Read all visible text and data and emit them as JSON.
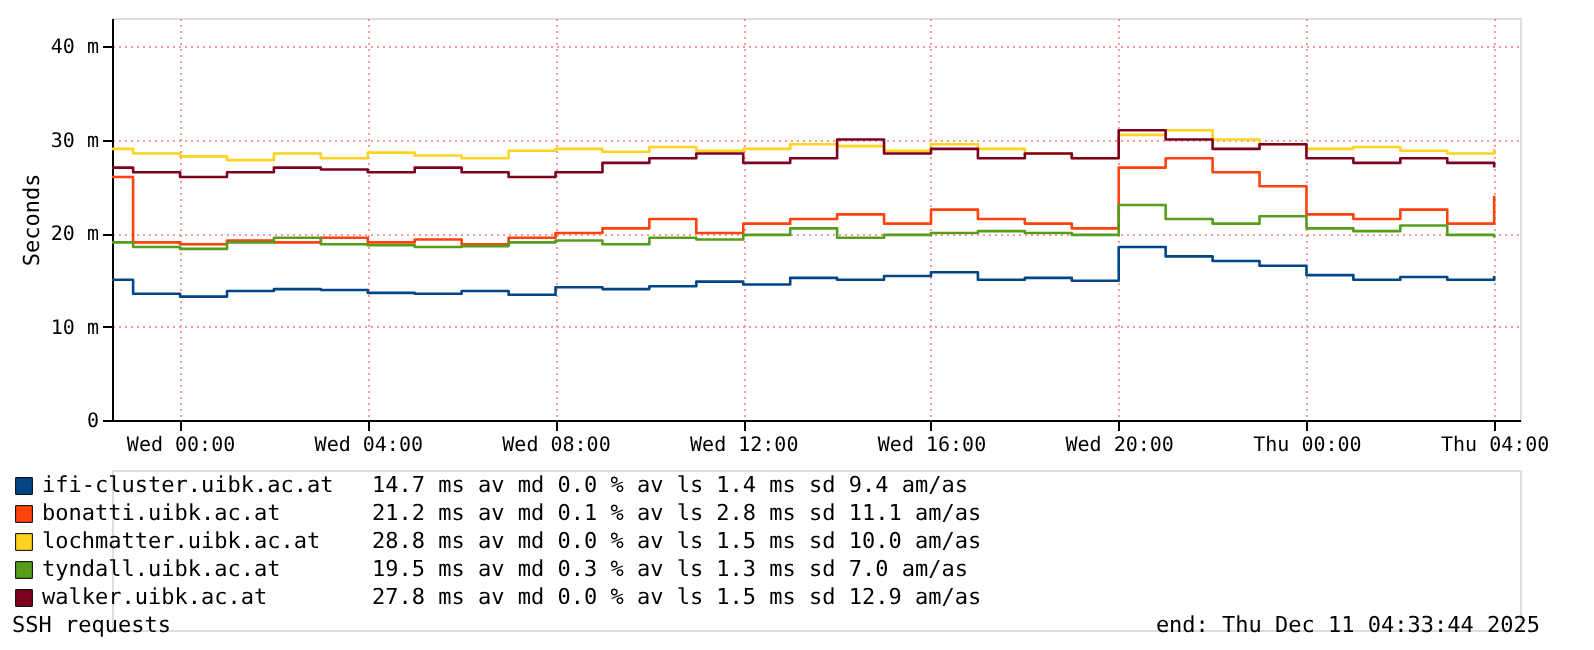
{
  "chart_data": {
    "type": "step",
    "ylabel": "Seconds",
    "x": [
      "2025-12-09T22:33",
      "2025-12-09T23:00",
      "2025-12-10T00:00",
      "2025-12-10T01:00",
      "2025-12-10T02:00",
      "2025-12-10T03:00",
      "2025-12-10T04:00",
      "2025-12-10T05:00",
      "2025-12-10T06:00",
      "2025-12-10T07:00",
      "2025-12-10T08:00",
      "2025-12-10T09:00",
      "2025-12-10T10:00",
      "2025-12-10T11:00",
      "2025-12-10T12:00",
      "2025-12-10T13:00",
      "2025-12-10T14:00",
      "2025-12-10T15:00",
      "2025-12-10T16:00",
      "2025-12-10T17:00",
      "2025-12-10T18:00",
      "2025-12-10T19:00",
      "2025-12-10T20:00",
      "2025-12-10T21:00",
      "2025-12-10T22:00",
      "2025-12-10T23:00",
      "2025-12-11T00:00",
      "2025-12-11T01:00",
      "2025-12-11T02:00",
      "2025-12-11T03:00",
      "2025-12-11T04:00"
    ],
    "series": [
      {
        "name": "ifi-cluster.uibk.ac.at",
        "color": "#004586",
        "values": [
          15,
          13.5,
          13.2,
          13.8,
          14,
          13.9,
          13.6,
          13.5,
          13.8,
          13.4,
          14.2,
          14,
          14.3,
          14.8,
          14.5,
          15.2,
          15,
          15.4,
          15.8,
          15,
          15.2,
          14.9,
          18.5,
          17.5,
          17,
          16.5,
          15.5,
          15,
          15.3,
          15,
          15.4
        ]
      },
      {
        "name": "bonatti.uibk.ac.at",
        "color": "#ff420e",
        "values": [
          26,
          19,
          18.8,
          19.2,
          19,
          19.5,
          19,
          19.3,
          18.8,
          19.5,
          20,
          20.5,
          21.5,
          20,
          21,
          21.5,
          22,
          21,
          22.5,
          21.5,
          21,
          20.5,
          27,
          28,
          26.5,
          25,
          22,
          21.5,
          22.5,
          21,
          24
        ]
      },
      {
        "name": "lochmatter.uibk.ac.at",
        "color": "#ffd320",
        "values": [
          29,
          28.5,
          28.2,
          27.8,
          28.5,
          28,
          28.6,
          28.3,
          28,
          28.8,
          29,
          28.7,
          29.2,
          28.8,
          29,
          29.5,
          29.3,
          28.8,
          29.5,
          29,
          28.5,
          28,
          30.5,
          31,
          30,
          29.5,
          29,
          29.2,
          28.8,
          28.5,
          29
        ]
      },
      {
        "name": "tyndall.uibk.ac.at",
        "color": "#579d1c",
        "values": [
          19,
          18.5,
          18.3,
          19,
          19.5,
          18.8,
          18.7,
          18.5,
          18.6,
          19,
          19.2,
          18.8,
          19.5,
          19.3,
          19.8,
          20.5,
          19.5,
          19.8,
          20,
          20.2,
          20,
          19.8,
          23,
          21.5,
          21,
          21.8,
          20.5,
          20.2,
          20.8,
          19.8,
          19.5
        ]
      },
      {
        "name": "walker.uibk.ac.at",
        "color": "#7e0021",
        "values": [
          27,
          26.5,
          26,
          26.5,
          27,
          26.8,
          26.5,
          27,
          26.5,
          26,
          26.5,
          27.5,
          28,
          28.5,
          27.5,
          28,
          30,
          28.5,
          29,
          28,
          28.5,
          28,
          31,
          30,
          29,
          29.5,
          28,
          27.5,
          28,
          27.5,
          27
        ]
      }
    ],
    "xlim": [
      "2025-12-09T22:33",
      "2025-12-11T04:33"
    ],
    "xticks": [
      {
        "value": "2025-12-10T00:00",
        "label": "Wed 00:00"
      },
      {
        "value": "2025-12-10T04:00",
        "label": "Wed 04:00"
      },
      {
        "value": "2025-12-10T08:00",
        "label": "Wed 08:00"
      },
      {
        "value": "2025-12-10T12:00",
        "label": "Wed 12:00"
      },
      {
        "value": "2025-12-10T16:00",
        "label": "Wed 16:00"
      },
      {
        "value": "2025-12-10T20:00",
        "label": "Wed 20:00"
      },
      {
        "value": "2025-12-11T00:00",
        "label": "Thu 00:00"
      },
      {
        "value": "2025-12-11T04:00",
        "label": "Thu 04:00"
      }
    ],
    "ylim": [
      0,
      43
    ],
    "yticks": [
      0,
      {
        "value": 10,
        "label": "10 m"
      },
      {
        "value": 20,
        "label": "20 m"
      },
      {
        "value": 30,
        "label": "30 m"
      },
      {
        "value": 40,
        "label": "40 m"
      }
    ],
    "grid": true,
    "legend": "bottom",
    "annotations": [
      "14.7 ms av md     0.0 % av ls    1.4 ms sd    9.4   am/as",
      "21.2 ms av md     0.1 % av ls    2.8 ms sd   11.1   am/as",
      "28.8 ms av md     0.0 % av ls    1.5 ms sd   10.0   am/as",
      "19.5 ms av md     0.3 % av ls    1.3 ms sd    7.0   am/as",
      "27.8 ms av md     0.0 % av ls    1.5 ms sd   12.9   am/as",
      "SSH requests",
      "end: Thu Dec 11 04:33:44 2025"
    ]
  }
}
